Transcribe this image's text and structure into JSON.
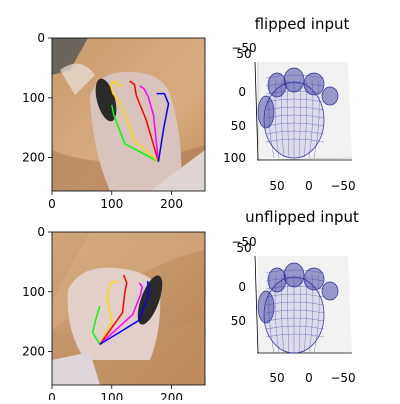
{
  "chart_data": [
    {
      "type": "image",
      "xticks": [
        "0",
        "100",
        "200"
      ],
      "yticks": [
        "0",
        "100",
        "200"
      ],
      "keypoint_lines": [
        {
          "color": "#00ff00",
          "points": [
            [
              178,
              207
            ],
            [
              122,
              177
            ],
            [
              103,
              128
            ],
            [
              100,
              112
            ]
          ]
        },
        {
          "color": "#ffd700",
          "points": [
            [
              178,
              207
            ],
            [
              138,
              172
            ],
            [
              115,
              110
            ],
            [
              102,
              93
            ],
            [
              98,
              80
            ],
            [
              104,
              72
            ],
            [
              117,
              82
            ]
          ]
        },
        {
          "color": "#ff0000",
          "points": [
            [
              178,
              207
            ],
            [
              158,
              138
            ],
            [
              141,
              96
            ],
            [
              138,
              78
            ],
            [
              130,
              72
            ]
          ]
        },
        {
          "color": "#ff00ff",
          "points": [
            [
              178,
              207
            ],
            [
              170,
              130
            ],
            [
              161,
              98
            ],
            [
              154,
              85
            ],
            [
              147,
              80
            ]
          ]
        },
        {
          "color": "#0000ff",
          "points": [
            [
              178,
              207
            ],
            [
              187,
              150
            ],
            [
              195,
              110
            ],
            [
              188,
              93
            ],
            [
              175,
              93
            ]
          ]
        }
      ]
    },
    {
      "type": "wireframe3d",
      "title": "flipped input",
      "xticks": [
        "50",
        "0",
        "−50"
      ],
      "yticks": [
        "0",
        "50",
        "100"
      ],
      "zticks": [
        "50",
        "−50"
      ]
    },
    {
      "type": "image",
      "xticks": [
        "0",
        "100",
        "200"
      ],
      "yticks": [
        "0",
        "100",
        "200"
      ],
      "keypoint_lines": [
        {
          "color": "#00ff00",
          "points": [
            [
              80,
              188
            ],
            [
              68,
              168
            ],
            [
              75,
              140
            ],
            [
              80,
              124
            ]
          ]
        },
        {
          "color": "#ffd700",
          "points": [
            [
              80,
              188
            ],
            [
              100,
              150
            ],
            [
              92,
              110
            ],
            [
              98,
              85
            ],
            [
              110,
              82
            ]
          ]
        },
        {
          "color": "#ff0000",
          "points": [
            [
              80,
              188
            ],
            [
              118,
              135
            ],
            [
              122,
              100
            ],
            [
              125,
              85
            ],
            [
              120,
              72
            ]
          ]
        },
        {
          "color": "#ff00ff",
          "points": [
            [
              80,
              188
            ],
            [
              135,
              138
            ],
            [
              148,
              105
            ],
            [
              151,
              92
            ],
            [
              146,
              85
            ]
          ]
        },
        {
          "color": "#0000ff",
          "points": [
            [
              80,
              188
            ],
            [
              145,
              148
            ],
            [
              158,
              115
            ],
            [
              162,
              97
            ],
            [
              160,
              82
            ]
          ]
        }
      ]
    },
    {
      "type": "wireframe3d",
      "title": "unflipped input",
      "xticks": [
        "50",
        "0",
        "−50"
      ],
      "yticks": [
        "0",
        "50"
      ],
      "zticks": [
        "50",
        "−50"
      ]
    }
  ]
}
